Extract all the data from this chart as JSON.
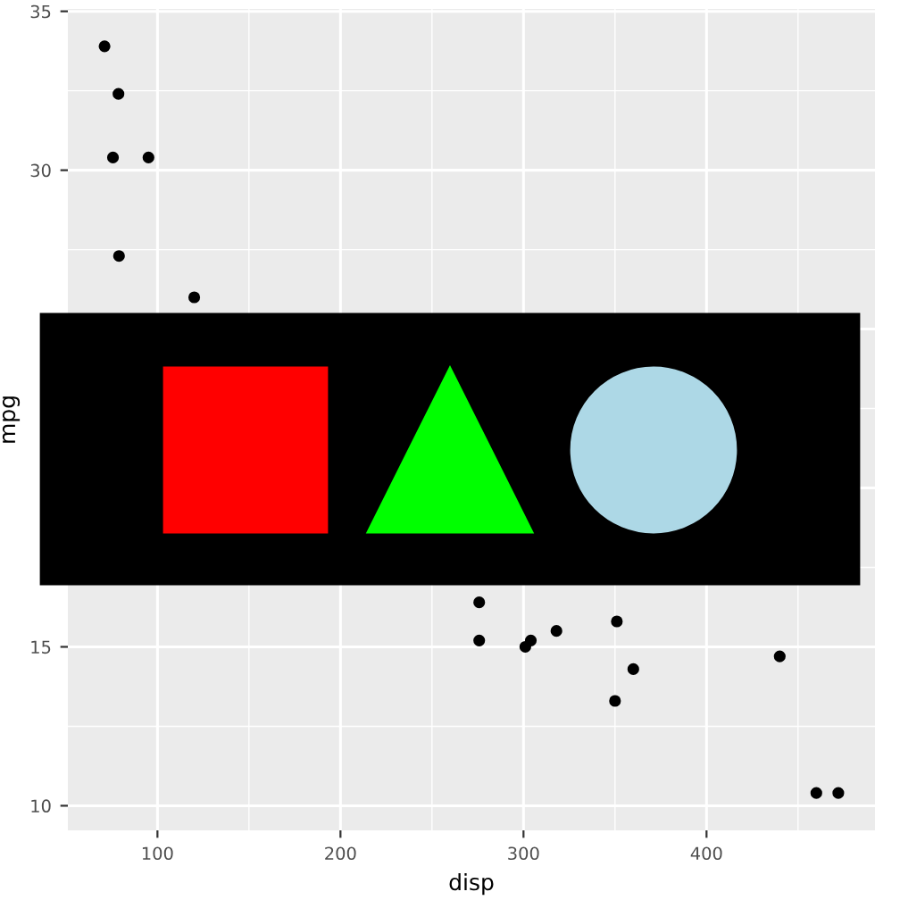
{
  "chart_data": {
    "type": "scatter",
    "xlabel": "disp",
    "ylabel": "mpg",
    "x": [
      71.1,
      78.7,
      75.7,
      95.1,
      79.0,
      120.1,
      275.8,
      275.8,
      472,
      460,
      440,
      318,
      304,
      350,
      351,
      301,
      360
    ],
    "series": [
      {
        "color": "#000000",
        "values": [
          33.9,
          32.4,
          30.4,
          30.4,
          27.3,
          26.0,
          16.4,
          15.2,
          10.4,
          10.4,
          14.7,
          15.5,
          15.2,
          13.3,
          15.8,
          15.0,
          14.3
        ]
      }
    ],
    "xlim": [
      51.05,
      492.05
    ],
    "ylim": [
      9.225,
      35.075
    ],
    "xticks": [
      100,
      200,
      300,
      400
    ],
    "yticks": [
      10,
      15,
      {
        "value": 20,
        "label": null
      },
      {
        "value": 25,
        "label": null
      },
      30,
      35
    ],
    "grid": true,
    "marker": "circle",
    "legend": false
  }
}
